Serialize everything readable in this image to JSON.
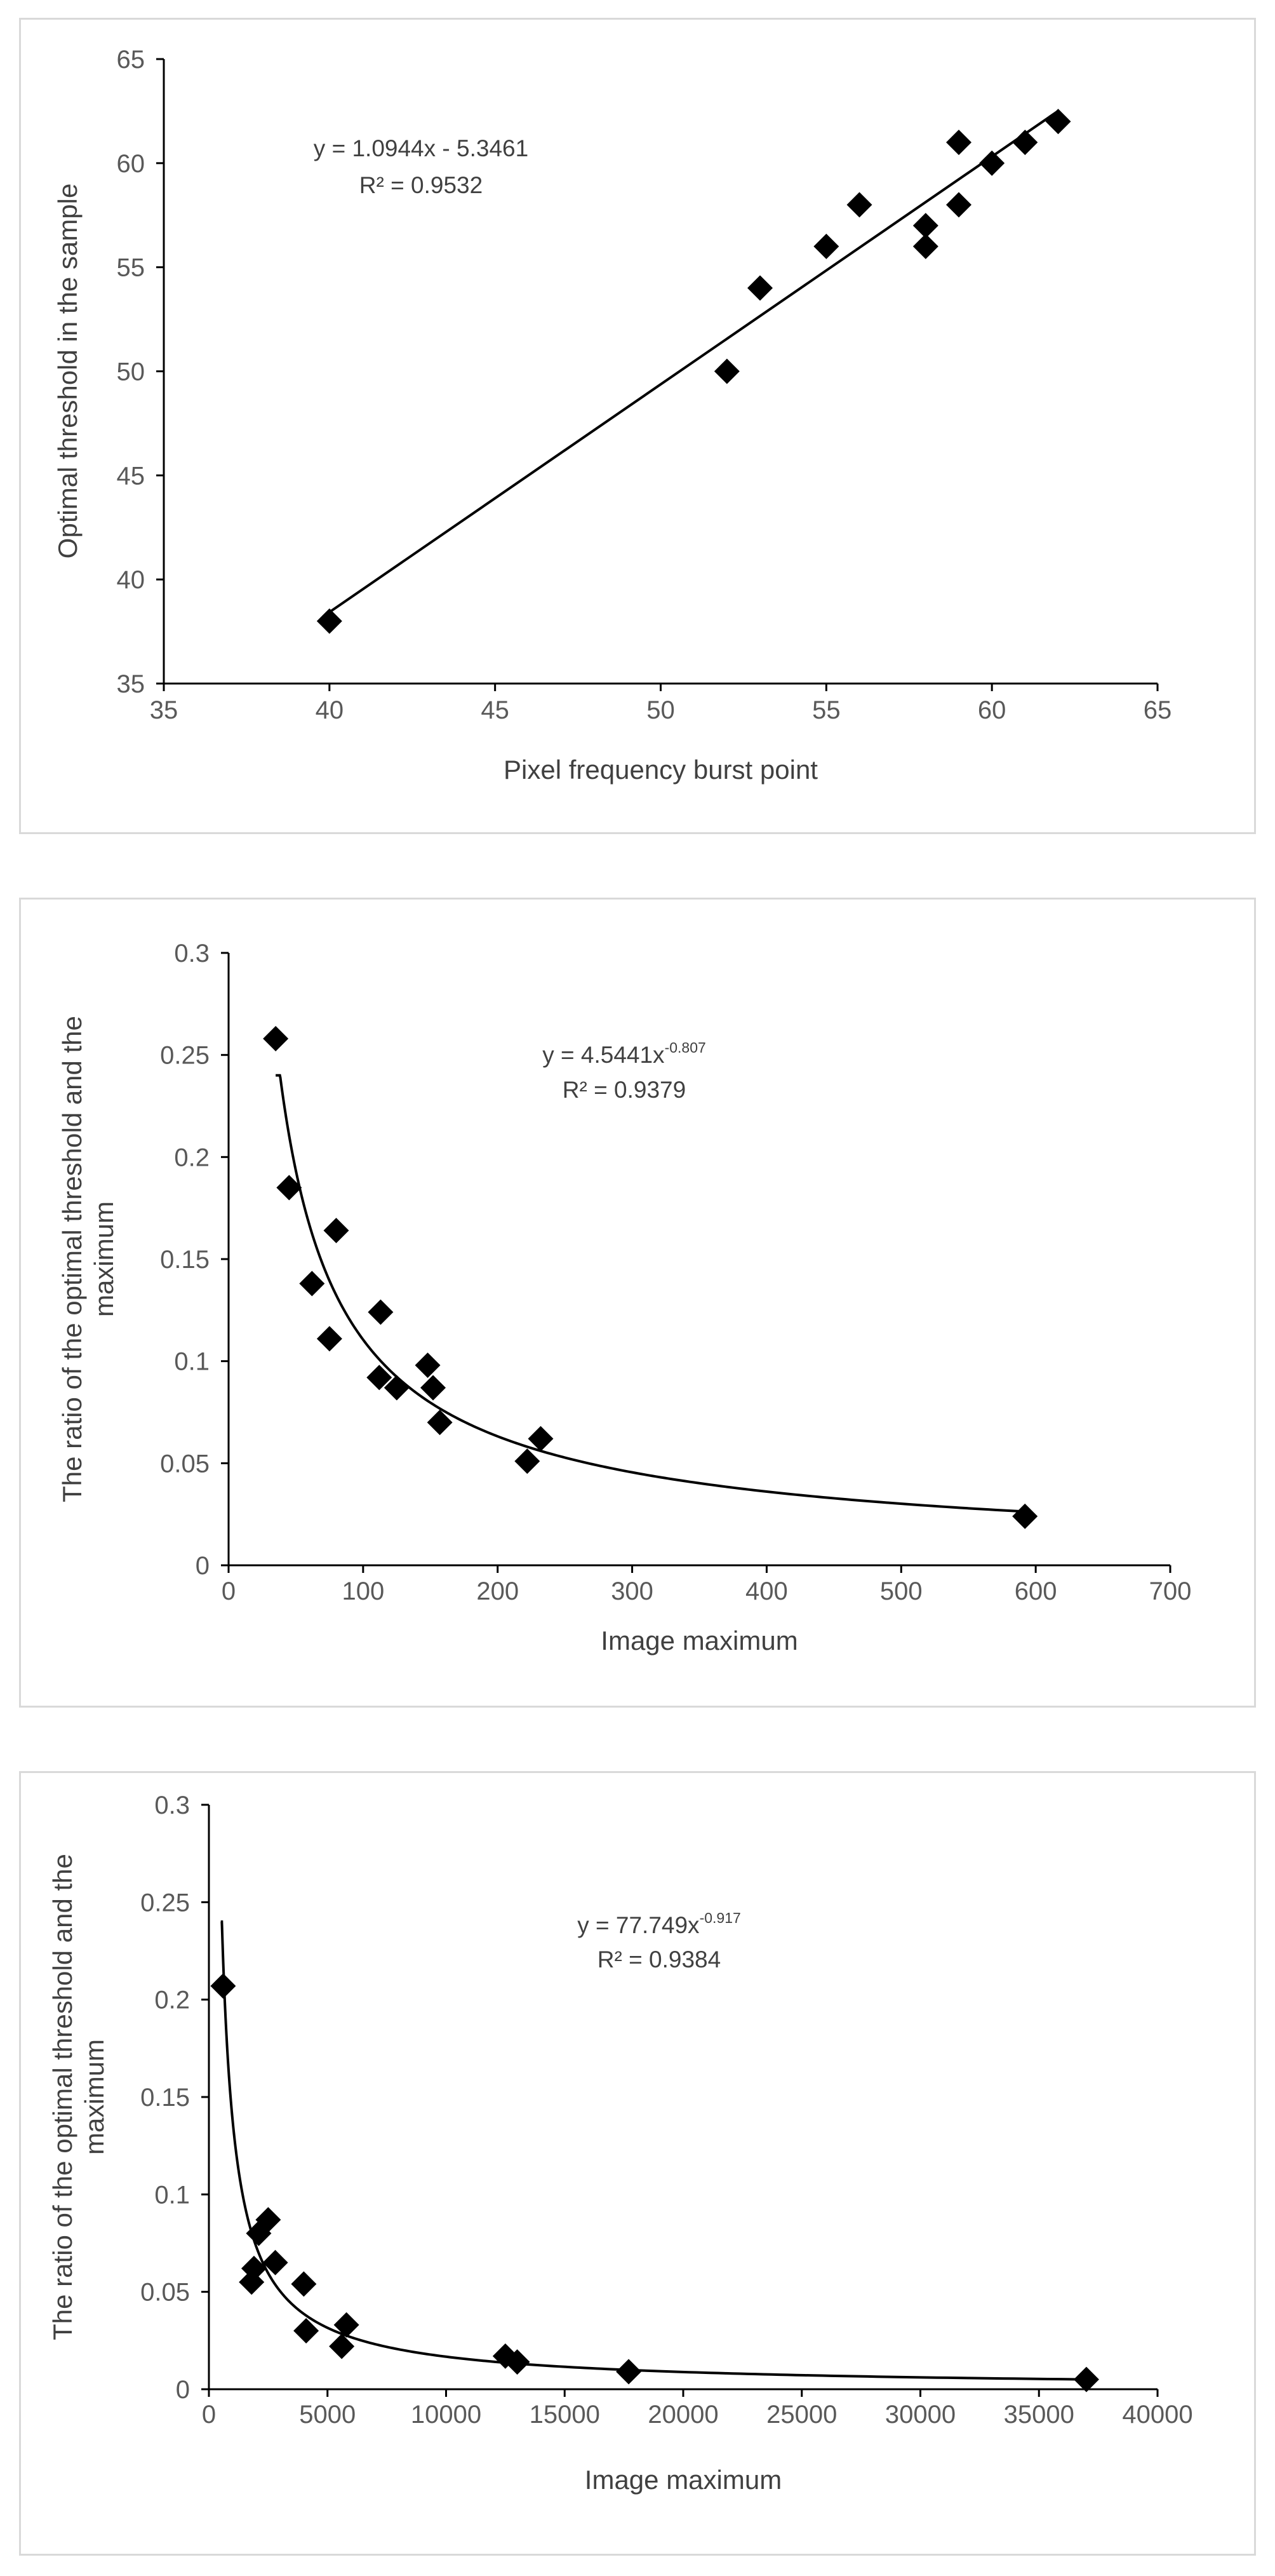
{
  "chart_data": [
    {
      "type": "scatter",
      "title": "",
      "xlabel": "Pixel frequency burst point",
      "ylabel": "Optimal threshold in the sample",
      "xlim": [
        35,
        65
      ],
      "ylim": [
        35,
        65
      ],
      "xticks": [
        35,
        40,
        45,
        50,
        55,
        60,
        65
      ],
      "yticks": [
        35,
        40,
        45,
        50,
        55,
        60,
        65
      ],
      "xtick_labels": [
        "35",
        "40",
        "45",
        "50",
        "55",
        "60",
        "65"
      ],
      "ytick_labels": [
        "35",
        "40",
        "45",
        "50",
        "55",
        "60",
        "65"
      ],
      "points": [
        [
          40,
          38
        ],
        [
          52,
          50
        ],
        [
          53,
          54
        ],
        [
          55,
          56
        ],
        [
          56,
          58
        ],
        [
          58,
          56
        ],
        [
          58,
          57
        ],
        [
          59,
          58
        ],
        [
          59,
          61
        ],
        [
          60,
          60
        ],
        [
          61,
          61
        ],
        [
          62,
          62
        ]
      ],
      "trendline": {
        "kind": "linear",
        "slope": 1.0944,
        "intercept": -5.3461,
        "x_from": 40,
        "x_to": 62
      },
      "equation": {
        "main": "y = 1.0944x - 5.3461",
        "exponent": ""
      },
      "r_squared": "R² = 0.9532",
      "grid": false,
      "colors": {
        "marker": "#000000",
        "trendline": "#000000",
        "axis": "#000000",
        "border": "#d9d9d9"
      }
    },
    {
      "type": "scatter",
      "title": "",
      "xlabel": "Image maximum",
      "ylabel": "The ratio of the optimal threshold and the maximum",
      "ylabel_lines": [
        "The ratio of the optimal threshold and the",
        "maximum"
      ],
      "xlim": [
        0,
        700
      ],
      "ylim": [
        0,
        0.3
      ],
      "xticks": [
        0,
        100,
        200,
        300,
        400,
        500,
        600,
        700
      ],
      "yticks": [
        0,
        0.05,
        0.1,
        0.15,
        0.2,
        0.25,
        0.3
      ],
      "xtick_labels": [
        "0",
        "100",
        "200",
        "300",
        "400",
        "500",
        "600",
        "700"
      ],
      "ytick_labels": [
        "0",
        "0.05",
        "0.1",
        "0.15",
        "0.2",
        "0.25",
        "0.3"
      ],
      "points": [
        [
          35,
          0.258
        ],
        [
          45,
          0.185
        ],
        [
          62,
          0.138
        ],
        [
          75,
          0.111
        ],
        [
          80,
          0.164
        ],
        [
          112,
          0.092
        ],
        [
          113,
          0.124
        ],
        [
          125,
          0.087
        ],
        [
          148,
          0.098
        ],
        [
          152,
          0.087
        ],
        [
          157,
          0.07
        ],
        [
          222,
          0.051
        ],
        [
          232,
          0.062
        ],
        [
          592,
          0.024
        ]
      ],
      "trendline": {
        "kind": "power",
        "coefficient": 4.5441,
        "exponent": -0.807,
        "x_from": 35,
        "x_to": 592
      },
      "equation": {
        "main": "y = 4.5441x",
        "exponent": "-0.807"
      },
      "r_squared": "R² = 0.9379",
      "grid": false,
      "colors": {
        "marker": "#000000",
        "trendline": "#000000",
        "axis": "#000000",
        "border": "#d9d9d9"
      }
    },
    {
      "type": "scatter",
      "title": "",
      "xlabel": "Image maximum",
      "ylabel": "The ratio of the optimal threshold and the maximum",
      "ylabel_lines": [
        "The ratio of the optimal threshold and the",
        "maximum"
      ],
      "xlim": [
        0,
        40000
      ],
      "ylim": [
        0,
        0.3
      ],
      "xticks": [
        0,
        5000,
        10000,
        15000,
        20000,
        25000,
        30000,
        35000,
        40000
      ],
      "yticks": [
        0,
        0.05,
        0.1,
        0.15,
        0.2,
        0.25,
        0.3
      ],
      "xtick_labels": [
        "0",
        "5000",
        "10000",
        "15000",
        "20000",
        "25000",
        "30000",
        "35000",
        "40000"
      ],
      "ytick_labels": [
        "0",
        "0.05",
        "0.1",
        "0.15",
        "0.2",
        "0.25",
        "0.3"
      ],
      "points": [
        [
          600,
          0.207
        ],
        [
          1800,
          0.055
        ],
        [
          1900,
          0.062
        ],
        [
          2100,
          0.08
        ],
        [
          2500,
          0.087
        ],
        [
          2800,
          0.065
        ],
        [
          4000,
          0.054
        ],
        [
          4100,
          0.03
        ],
        [
          5600,
          0.022
        ],
        [
          5800,
          0.033
        ],
        [
          12500,
          0.017
        ],
        [
          13000,
          0.014
        ],
        [
          17700,
          0.009
        ],
        [
          37000,
          0.005
        ]
      ],
      "trendline": {
        "kind": "power",
        "coefficient": 77.749,
        "exponent": -0.917,
        "x_from": 500,
        "x_to": 37000
      },
      "equation": {
        "main": "y = 77.749x",
        "exponent": "-0.917"
      },
      "r_squared": "R² = 0.9384",
      "grid": false,
      "colors": {
        "marker": "#000000",
        "trendline": "#000000",
        "axis": "#000000",
        "border": "#d9d9d9"
      }
    }
  ]
}
